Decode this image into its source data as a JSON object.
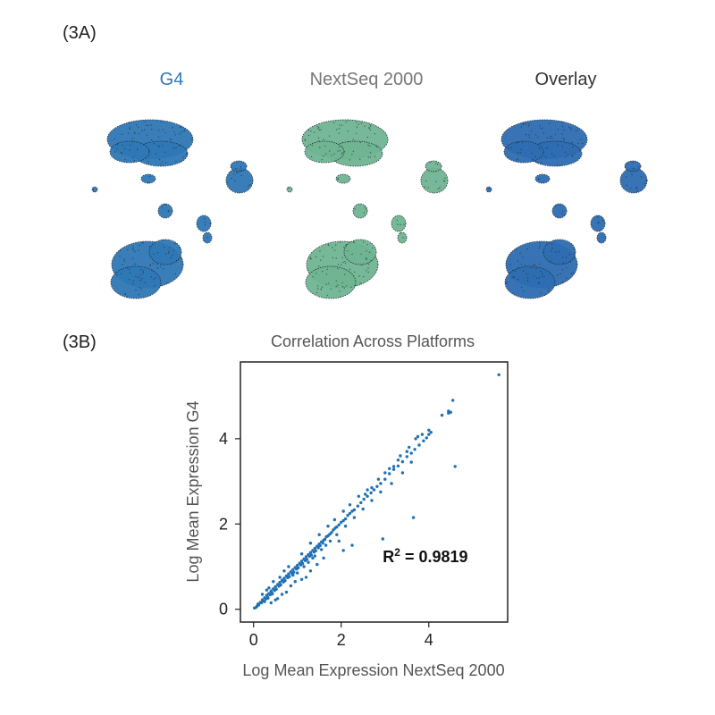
{
  "panels": {
    "a_label": "(3A)",
    "b_label": "(3B)"
  },
  "colors": {
    "g4": "#2f78b6",
    "nextseq": "#6fb592",
    "overlay": "#2e6db2",
    "scatter": "#1f70b4",
    "title_gray": "#555555",
    "text_dark": "#333333"
  },
  "chart_data": [
    {
      "type": "scatter",
      "subtype": "umap-embedding-panels",
      "panels": [
        {
          "name": "G4",
          "title_color": "#2f78b6",
          "fill": "#2f78b6"
        },
        {
          "name": "NextSeq 2000",
          "title_color": "#777777",
          "fill": "#6fb592"
        },
        {
          "name": "Overlay",
          "title_color": "#333333",
          "fill": "#2e6db2"
        }
      ]
    },
    {
      "type": "scatter",
      "title": "Correlation Across Platforms",
      "xlabel": "Log Mean Expression NextSeq 2000",
      "ylabel": "Log Mean Expression G4",
      "xlim": [
        -0.3,
        5.8
      ],
      "ylim": [
        -0.3,
        5.8
      ],
      "xticks": [
        0,
        2,
        4
      ],
      "yticks": [
        0,
        2,
        4
      ],
      "annotation": {
        "base": "R",
        "sup": "2",
        "text": " = 0.9819",
        "x": 2.95,
        "y": 1.1
      },
      "points": [
        [
          0.02,
          0.03
        ],
        [
          0.05,
          0.04
        ],
        [
          0.08,
          0.07
        ],
        [
          0.1,
          0.12
        ],
        [
          0.12,
          0.1
        ],
        [
          0.15,
          0.16
        ],
        [
          0.18,
          0.15
        ],
        [
          0.2,
          0.22
        ],
        [
          0.22,
          0.19
        ],
        [
          0.25,
          0.27
        ],
        [
          0.28,
          0.24
        ],
        [
          0.3,
          0.33
        ],
        [
          0.32,
          0.29
        ],
        [
          0.35,
          0.37
        ],
        [
          0.38,
          0.34
        ],
        [
          0.4,
          0.43
        ],
        [
          0.42,
          0.38
        ],
        [
          0.45,
          0.48
        ],
        [
          0.48,
          0.44
        ],
        [
          0.5,
          0.53
        ],
        [
          0.52,
          0.47
        ],
        [
          0.55,
          0.58
        ],
        [
          0.58,
          0.54
        ],
        [
          0.6,
          0.63
        ],
        [
          0.62,
          0.57
        ],
        [
          0.65,
          0.68
        ],
        [
          0.68,
          0.64
        ],
        [
          0.7,
          0.73
        ],
        [
          0.72,
          0.67
        ],
        [
          0.75,
          0.78
        ],
        [
          0.78,
          0.74
        ],
        [
          0.8,
          0.83
        ],
        [
          0.82,
          0.77
        ],
        [
          0.85,
          0.88
        ],
        [
          0.88,
          0.84
        ],
        [
          0.9,
          0.93
        ],
        [
          0.92,
          0.87
        ],
        [
          0.95,
          0.98
        ],
        [
          0.98,
          0.94
        ],
        [
          1.0,
          1.03
        ],
        [
          1.02,
          0.97
        ],
        [
          1.05,
          1.08
        ],
        [
          1.08,
          1.04
        ],
        [
          1.1,
          1.13
        ],
        [
          1.12,
          1.07
        ],
        [
          1.15,
          1.18
        ],
        [
          1.18,
          1.14
        ],
        [
          1.2,
          1.23
        ],
        [
          1.22,
          1.17
        ],
        [
          1.25,
          1.28
        ],
        [
          1.28,
          1.24
        ],
        [
          1.3,
          1.33
        ],
        [
          1.32,
          1.27
        ],
        [
          1.35,
          1.38
        ],
        [
          1.38,
          1.34
        ],
        [
          1.4,
          1.43
        ],
        [
          1.42,
          1.37
        ],
        [
          1.45,
          1.48
        ],
        [
          1.48,
          1.44
        ],
        [
          1.5,
          1.53
        ],
        [
          1.52,
          1.49
        ],
        [
          1.55,
          1.58
        ],
        [
          1.58,
          1.55
        ],
        [
          1.6,
          1.62
        ],
        [
          1.63,
          1.64
        ],
        [
          1.66,
          1.7
        ],
        [
          1.7,
          1.72
        ],
        [
          1.74,
          1.76
        ],
        [
          1.78,
          1.8
        ],
        [
          1.82,
          1.86
        ],
        [
          1.86,
          1.9
        ],
        [
          1.9,
          1.93
        ],
        [
          1.95,
          1.98
        ],
        [
          2.0,
          2.04
        ],
        [
          2.05,
          2.08
        ],
        [
          2.1,
          2.12
        ],
        [
          2.15,
          2.2
        ],
        [
          2.2,
          2.25
        ],
        [
          2.25,
          2.3
        ],
        [
          2.3,
          2.33
        ],
        [
          2.38,
          2.42
        ],
        [
          2.45,
          2.5
        ],
        [
          2.52,
          2.58
        ],
        [
          2.6,
          2.65
        ],
        [
          2.68,
          2.73
        ],
        [
          2.75,
          2.8
        ],
        [
          2.82,
          2.88
        ],
        [
          2.9,
          2.95
        ],
        [
          3.0,
          3.05
        ],
        [
          3.1,
          3.18
        ],
        [
          3.2,
          3.28
        ],
        [
          3.3,
          3.36
        ],
        [
          3.4,
          3.46
        ],
        [
          3.5,
          3.58
        ],
        [
          3.6,
          3.66
        ],
        [
          3.68,
          3.75
        ],
        [
          3.78,
          3.85
        ],
        [
          3.88,
          3.95
        ],
        [
          3.95,
          4.02
        ],
        [
          4.0,
          4.1
        ],
        [
          3.7,
          4.0
        ],
        [
          3.75,
          4.05
        ],
        [
          3.5,
          3.7
        ],
        [
          3.3,
          3.5
        ],
        [
          3.2,
          3.35
        ],
        [
          3.0,
          3.2
        ],
        [
          2.7,
          2.85
        ],
        [
          2.55,
          2.7
        ],
        [
          4.0,
          4.2
        ],
        [
          4.05,
          4.15
        ],
        [
          4.3,
          4.55
        ],
        [
          4.45,
          4.65
        ],
        [
          4.5,
          4.62
        ],
        [
          4.55,
          4.9
        ],
        [
          4.45,
          4.6
        ],
        [
          5.6,
          5.5
        ],
        [
          4.6,
          3.35
        ],
        [
          3.65,
          2.15
        ],
        [
          2.95,
          1.65
        ],
        [
          2.05,
          1.38
        ],
        [
          1.95,
          1.6
        ],
        [
          2.25,
          1.5
        ],
        [
          1.6,
          1.2
        ],
        [
          1.45,
          1.05
        ],
        [
          1.3,
          0.9
        ],
        [
          1.2,
          0.75
        ],
        [
          1.1,
          0.7
        ],
        [
          0.95,
          0.65
        ],
        [
          0.85,
          0.55
        ],
        [
          0.75,
          0.4
        ],
        [
          0.65,
          0.35
        ],
        [
          0.55,
          0.25
        ],
        [
          0.5,
          0.22
        ],
        [
          0.4,
          0.15
        ],
        [
          0.6,
          0.75
        ],
        [
          0.45,
          0.65
        ],
        [
          0.35,
          0.5
        ],
        [
          0.3,
          0.45
        ],
        [
          0.2,
          0.35
        ],
        [
          0.7,
          0.9
        ],
        [
          0.8,
          1.0
        ],
        [
          1.1,
          1.3
        ],
        [
          1.3,
          1.55
        ],
        [
          1.5,
          1.75
        ],
        [
          1.7,
          1.95
        ],
        [
          1.85,
          2.1
        ],
        [
          2.05,
          2.3
        ],
        [
          2.2,
          2.45
        ],
        [
          2.4,
          2.65
        ],
        [
          2.6,
          2.8
        ],
        [
          2.85,
          3.05
        ],
        [
          3.1,
          3.3
        ],
        [
          3.35,
          3.6
        ],
        [
          3.55,
          3.8
        ],
        [
          3.85,
          4.1
        ],
        [
          1.75,
          1.6
        ],
        [
          1.9,
          1.75
        ],
        [
          2.1,
          1.95
        ],
        [
          2.3,
          2.15
        ],
        [
          2.5,
          2.35
        ],
        [
          2.7,
          2.55
        ],
        [
          2.9,
          2.75
        ],
        [
          3.15,
          2.95
        ],
        [
          3.4,
          3.2
        ],
        [
          3.6,
          3.45
        ],
        [
          0.9,
          0.8
        ],
        [
          1.0,
          0.85
        ],
        [
          1.15,
          1.0
        ],
        [
          1.25,
          1.1
        ],
        [
          1.35,
          1.2
        ],
        [
          1.4,
          1.25
        ],
        [
          1.55,
          1.4
        ],
        [
          1.65,
          1.5
        ],
        [
          0.25,
          0.18
        ],
        [
          0.33,
          0.26
        ],
        [
          0.43,
          0.36
        ]
      ]
    }
  ]
}
